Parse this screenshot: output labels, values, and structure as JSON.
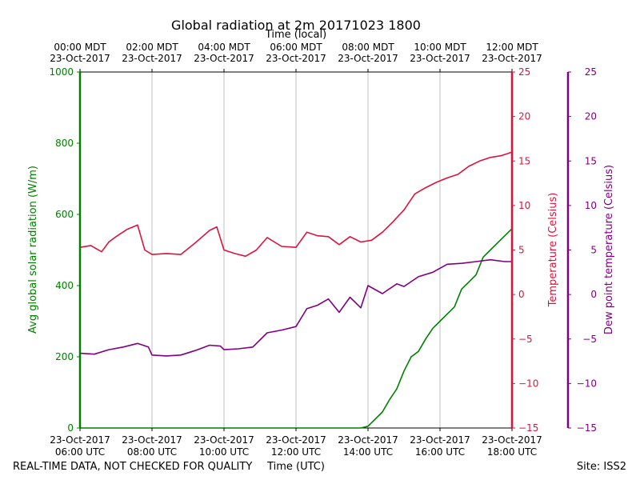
{
  "chart_data": {
    "type": "line",
    "title": "Global radiation at 2m 20171023 1800",
    "top_xlabel": "Time (local)",
    "bottom_xlabel": "Time (UTC)",
    "footer_left": "REAL-TIME DATA, NOT CHECKED FOR QUALITY",
    "footer_right": "Site: ISS2",
    "x_hours_utc": [
      6,
      18
    ],
    "x_ticks_utc": [
      {
        "hour": 6,
        "date": "23-Oct-2017",
        "time": "06:00 UTC"
      },
      {
        "hour": 8,
        "date": "23-Oct-2017",
        "time": "08:00 UTC"
      },
      {
        "hour": 10,
        "date": "23-Oct-2017",
        "time": "10:00 UTC"
      },
      {
        "hour": 12,
        "date": "23-Oct-2017",
        "time": "12:00 UTC"
      },
      {
        "hour": 14,
        "date": "23-Oct-2017",
        "time": "14:00 UTC"
      },
      {
        "hour": 16,
        "date": "23-Oct-2017",
        "time": "16:00 UTC"
      },
      {
        "hour": 18,
        "date": "23-Oct-2017",
        "time": "18:00 UTC"
      }
    ],
    "x_ticks_local": [
      {
        "hour": 6,
        "time": "00:00 MDT",
        "date": "23-Oct-2017"
      },
      {
        "hour": 8,
        "time": "02:00 MDT",
        "date": "23-Oct-2017"
      },
      {
        "hour": 10,
        "time": "04:00 MDT",
        "date": "23-Oct-2017"
      },
      {
        "hour": 12,
        "time": "06:00 MDT",
        "date": "23-Oct-2017"
      },
      {
        "hour": 14,
        "time": "08:00 MDT",
        "date": "23-Oct-2017"
      },
      {
        "hour": 16,
        "time": "10:00 MDT",
        "date": "23-Oct-2017"
      },
      {
        "hour": 18,
        "time": "12:00 MDT",
        "date": "23-Oct-2017"
      }
    ],
    "axes": {
      "radiation": {
        "label": "Avg global solar radiation (W/m)",
        "range": [
          0,
          1000
        ],
        "ticks": [
          0,
          200,
          400,
          600,
          800,
          1000
        ],
        "color": "#008000"
      },
      "temperature": {
        "label": "Temperature (Celsius)",
        "range": [
          -15,
          25
        ],
        "ticks": [
          -15,
          -10,
          -5,
          0,
          5,
          10,
          15,
          20,
          25
        ],
        "color": "#dc143c"
      },
      "dewpoint": {
        "label": "Dew point temperature (Celsius)",
        "range": [
          -15,
          25
        ],
        "ticks": [
          -15,
          -10,
          -5,
          0,
          5,
          10,
          15,
          20,
          25
        ],
        "color": "#800080"
      }
    },
    "series": [
      {
        "name": "Avg global solar radiation",
        "axis": "radiation",
        "color": "#008000",
        "x": [
          6.0,
          13.8,
          14.0,
          14.2,
          14.4,
          14.6,
          14.8,
          15.0,
          15.2,
          15.4,
          15.6,
          15.8,
          16.0,
          16.2,
          16.4,
          16.6,
          16.8,
          17.0,
          17.2,
          17.4,
          17.6,
          17.8,
          18.0
        ],
        "values": [
          0,
          0,
          5,
          25,
          45,
          80,
          110,
          160,
          200,
          215,
          250,
          280,
          300,
          320,
          340,
          390,
          410,
          430,
          480,
          500,
          520,
          540,
          560
        ]
      },
      {
        "name": "Temperature",
        "axis": "temperature",
        "color": "#dc143c",
        "x": [
          6.0,
          6.3,
          6.6,
          6.8,
          7.0,
          7.3,
          7.6,
          7.8,
          8.0,
          8.4,
          8.8,
          9.2,
          9.6,
          9.8,
          10.0,
          10.3,
          10.6,
          10.9,
          11.2,
          11.6,
          12.0,
          12.3,
          12.6,
          12.9,
          13.2,
          13.5,
          13.8,
          14.1,
          14.4,
          14.7,
          15.0,
          15.3,
          15.6,
          15.9,
          16.2,
          16.5,
          16.8,
          17.1,
          17.4,
          17.7,
          18.0
        ],
        "values": [
          5.3,
          5.5,
          4.8,
          5.9,
          6.5,
          7.3,
          7.8,
          5.0,
          4.5,
          4.6,
          4.5,
          5.8,
          7.2,
          7.6,
          5.0,
          4.6,
          4.3,
          5.0,
          6.4,
          5.4,
          5.3,
          7.0,
          6.6,
          6.5,
          5.6,
          6.5,
          5.9,
          6.1,
          7.0,
          8.2,
          9.5,
          11.3,
          12.0,
          12.6,
          13.1,
          13.5,
          14.4,
          15.0,
          15.4,
          15.6,
          16.0
        ]
      },
      {
        "name": "Dew point temperature",
        "axis": "dewpoint",
        "color": "#800080",
        "x": [
          6.0,
          6.4,
          6.8,
          7.2,
          7.6,
          7.9,
          8.0,
          8.4,
          8.8,
          9.2,
          9.6,
          9.9,
          10.0,
          10.4,
          10.8,
          11.2,
          11.6,
          12.0,
          12.3,
          12.6,
          12.9,
          13.2,
          13.5,
          13.8,
          14.0,
          14.4,
          14.8,
          15.0,
          15.4,
          15.8,
          16.2,
          16.6,
          17.0,
          17.4,
          17.8,
          18.0
        ],
        "values": [
          -6.6,
          -6.7,
          -6.2,
          -5.9,
          -5.5,
          -5.9,
          -6.8,
          -6.9,
          -6.8,
          -6.3,
          -5.7,
          -5.8,
          -6.2,
          -6.1,
          -5.9,
          -4.3,
          -4.0,
          -3.6,
          -1.6,
          -1.2,
          -0.5,
          -2.0,
          -0.3,
          -1.5,
          1.0,
          0.1,
          1.2,
          0.9,
          2.0,
          2.5,
          3.4,
          3.5,
          3.7,
          3.9,
          3.7,
          3.7
        ]
      }
    ]
  }
}
